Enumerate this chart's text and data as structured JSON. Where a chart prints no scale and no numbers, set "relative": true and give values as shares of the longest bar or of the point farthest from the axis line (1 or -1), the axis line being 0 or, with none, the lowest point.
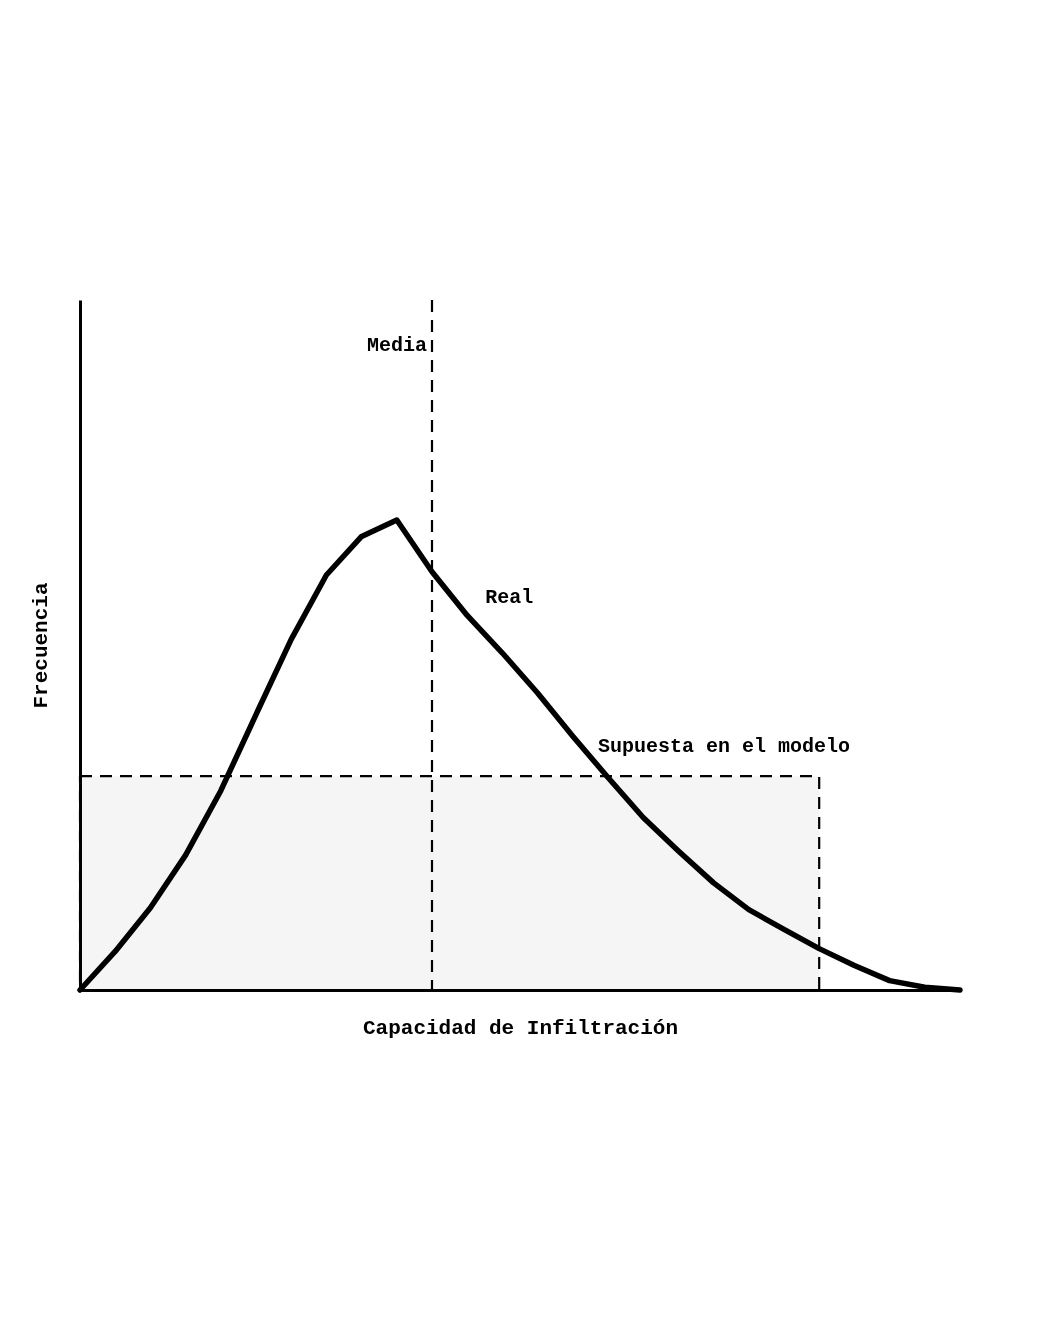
{
  "chart_data": {
    "type": "line",
    "relative": true,
    "xlabel": "Capacidad de Infiltración",
    "ylabel": "Frecuencia",
    "grid": false,
    "legend": false,
    "categories": [
      null,
      null,
      null,
      null,
      null,
      null,
      null,
      null,
      null,
      null,
      null,
      null,
      null,
      null,
      null,
      null,
      null,
      null,
      null,
      null,
      null,
      null,
      null,
      null,
      null,
      null
    ],
    "series": [
      {
        "name": "Real",
        "color": "#000000",
        "values": [
          0,
          0.082,
          0.175,
          0.287,
          0.424,
          0.586,
          0.746,
          0.883,
          0.965,
          1,
          0.89,
          0.797,
          0.717,
          0.632,
          0.54,
          0.452,
          0.367,
          0.296,
          0.228,
          0.171,
          0.129,
          0.088,
          0.052,
          0.02,
          0.006,
          0
        ]
      },
      {
        "name": "Supuesta en el modelo",
        "type": "area",
        "line_style": "dashed",
        "color": "#000000",
        "values": [
          0.455,
          0.455,
          0.455,
          0.455,
          0.455,
          0.455,
          0.455,
          0.455,
          0.455,
          0.455,
          0.455,
          0.455,
          0.455,
          0.455,
          0.455,
          0.455,
          0.455,
          0.455,
          0.455,
          0.455,
          0.455,
          0.455,
          null,
          null,
          null,
          null
        ]
      }
    ],
    "annotations": [
      "Media"
    ]
  }
}
